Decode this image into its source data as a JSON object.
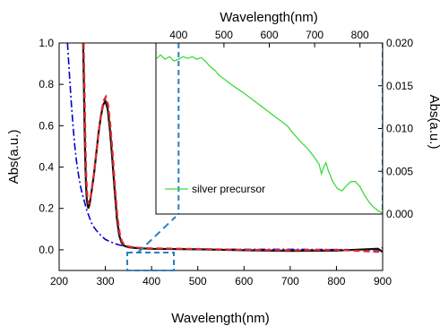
{
  "chart_data": [
    {
      "type": "line",
      "xlabel": "Wavelength(nm)",
      "ylabel": "Abs(a.u.)",
      "xlim": [
        200,
        900
      ],
      "ylim": [
        -0.1,
        1.0
      ],
      "xticks": [
        200,
        300,
        400,
        500,
        600,
        700,
        800,
        900
      ],
      "xtick_labels": [
        "200",
        "300",
        "400",
        "500",
        "600",
        "700",
        "800",
        "900"
      ],
      "yticks": [
        0.0,
        0.2,
        0.4,
        0.6,
        0.8,
        1.0
      ],
      "ytick_labels": [
        "0.0",
        "0.2",
        "0.4",
        "0.6",
        "0.8",
        "1.0"
      ],
      "grid": false,
      "series": [
        {
          "color": "#0000cc",
          "dash": "dashdot",
          "x": [
            218,
            222,
            226,
            230,
            234,
            238,
            242,
            246,
            250,
            255,
            260,
            265,
            270,
            275,
            280,
            290,
            300,
            320,
            340,
            360,
            400,
            500,
            600,
            700,
            800,
            900
          ],
          "y": [
            1.0,
            0.86,
            0.72,
            0.6,
            0.5,
            0.42,
            0.36,
            0.31,
            0.27,
            0.23,
            0.19,
            0.16,
            0.13,
            0.11,
            0.095,
            0.07,
            0.05,
            0.03,
            0.018,
            0.01,
            0.005,
            0.003,
            0.002,
            0.002,
            0.001,
            0.0
          ]
        },
        {
          "color": "#111111",
          "dash": "solid",
          "x": [
            252,
            254,
            256,
            258,
            260,
            263,
            266,
            270,
            275,
            280,
            285,
            290,
            295,
            300,
            305,
            310,
            315,
            320,
            325,
            330,
            335,
            340,
            350,
            370,
            400,
            500,
            600,
            700,
            800,
            890,
            900
          ],
          "y": [
            1.0,
            0.75,
            0.48,
            0.32,
            0.24,
            0.2,
            0.22,
            0.28,
            0.36,
            0.46,
            0.56,
            0.64,
            0.7,
            0.72,
            0.68,
            0.58,
            0.44,
            0.29,
            0.15,
            0.07,
            0.035,
            0.02,
            0.012,
            0.008,
            0.005,
            0.002,
            -0.002,
            -0.005,
            -0.004,
            0.005,
            -0.01
          ]
        },
        {
          "color": "#e8262b",
          "dash": "dashed",
          "x": [
            253,
            255,
            257,
            259,
            261,
            264,
            267,
            271,
            276,
            281,
            286,
            291,
            296,
            301,
            306,
            311,
            316,
            321,
            326,
            331,
            336,
            341,
            351,
            371,
            400,
            500,
            600,
            700,
            800,
            890,
            900
          ],
          "y": [
            1.0,
            0.76,
            0.5,
            0.34,
            0.26,
            0.22,
            0.24,
            0.3,
            0.38,
            0.48,
            0.58,
            0.66,
            0.72,
            0.74,
            0.7,
            0.6,
            0.46,
            0.3,
            0.16,
            0.08,
            0.04,
            0.025,
            0.015,
            0.01,
            0.007,
            0.004,
            0.0,
            -0.002,
            0.0,
            -0.01,
            0.01
          ]
        }
      ]
    },
    {
      "type": "line",
      "xlabel": "Wavelength(nm)",
      "ylabel": "Abs(a.u.)",
      "xlim": [
        350,
        850
      ],
      "ylim": [
        0.0,
        0.02
      ],
      "xticks": [
        400,
        500,
        600,
        700,
        800
      ],
      "xtick_labels": [
        "400",
        "500",
        "600",
        "700",
        "800"
      ],
      "yticks": [
        0.0,
        0.005,
        0.01,
        0.015,
        0.02
      ],
      "ytick_labels": [
        "0.000",
        "0.005",
        "0.010",
        "0.015",
        "0.020"
      ],
      "legend": {
        "position": "lower-left",
        "entries": [
          "silver precursor"
        ]
      },
      "series": [
        {
          "name": "silver precursor",
          "color": "#3ddc3d",
          "x": [
            352,
            360,
            370,
            380,
            390,
            400,
            410,
            420,
            430,
            440,
            450,
            460,
            470,
            480,
            490,
            500,
            520,
            540,
            560,
            580,
            600,
            620,
            640,
            650,
            660,
            670,
            680,
            690,
            700,
            710,
            715,
            720,
            725,
            730,
            740,
            750,
            760,
            770,
            780,
            790,
            800,
            810,
            820,
            830,
            840,
            850
          ],
          "y": [
            0.0182,
            0.0186,
            0.0181,
            0.0184,
            0.0179,
            0.0181,
            0.0184,
            0.0182,
            0.0184,
            0.0181,
            0.0183,
            0.0178,
            0.0172,
            0.0168,
            0.0162,
            0.0158,
            0.015,
            0.0143,
            0.0135,
            0.0127,
            0.0119,
            0.0111,
            0.0103,
            0.0096,
            0.009,
            0.0084,
            0.0079,
            0.0073,
            0.0066,
            0.0058,
            0.0047,
            0.0055,
            0.006,
            0.0051,
            0.0038,
            0.003,
            0.0027,
            0.0033,
            0.0038,
            0.0038,
            0.0032,
            0.0022,
            0.0014,
            0.0008,
            0.0004,
            0.0001
          ]
        }
      ],
      "reference_lines_x": [
        400,
        850
      ]
    }
  ]
}
